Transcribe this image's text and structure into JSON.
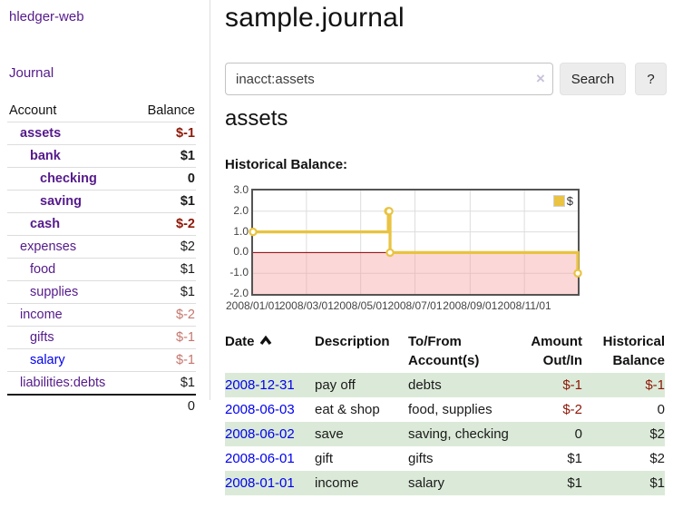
{
  "app": {
    "title": "hledger-web"
  },
  "sidebar": {
    "journal_label": "Journal",
    "table": {
      "account_header": "Account",
      "balance_header": "Balance",
      "rows": [
        {
          "name": "assets",
          "balance": "$-1",
          "depth": 1,
          "bold": true,
          "neg": "strong"
        },
        {
          "name": "bank",
          "balance": "$1",
          "depth": 2,
          "bold": true,
          "neg": "none"
        },
        {
          "name": "checking",
          "balance": "0",
          "depth": 3,
          "bold": true,
          "neg": "none"
        },
        {
          "name": "saving",
          "balance": "$1",
          "depth": 3,
          "bold": true,
          "neg": "none"
        },
        {
          "name": "cash",
          "balance": "$-2",
          "depth": 2,
          "bold": true,
          "neg": "strong"
        },
        {
          "name": "expenses",
          "balance": "$2",
          "depth": 1,
          "bold": false,
          "neg": "none"
        },
        {
          "name": "food",
          "balance": "$1",
          "depth": 2,
          "bold": false,
          "neg": "none"
        },
        {
          "name": "supplies",
          "balance": "$1",
          "depth": 2,
          "bold": false,
          "neg": "none"
        },
        {
          "name": "income",
          "balance": "$-2",
          "depth": 1,
          "bold": false,
          "neg": "faded"
        },
        {
          "name": "gifts",
          "balance": "$-1",
          "depth": 2,
          "bold": false,
          "neg": "faded"
        },
        {
          "name": "salary",
          "balance": "$-1",
          "depth": 2,
          "bold": false,
          "neg": "faded",
          "link_color": "blue"
        },
        {
          "name": "liabilities:debts",
          "balance": "$1",
          "depth": 1,
          "bold": false,
          "neg": "none"
        }
      ],
      "total": "0"
    }
  },
  "main": {
    "title": "sample.journal",
    "search": {
      "value": "inacct:assets",
      "clear_icon": "×",
      "button_label": "Search",
      "help_label": "?"
    },
    "account_heading": "assets",
    "chart_label": "Historical Balance:"
  },
  "chart_data": {
    "type": "line",
    "title": "Historical Balance",
    "step": true,
    "x_start": "2008-01-01",
    "x_end": "2008-12-31",
    "ylim": [
      -2,
      3
    ],
    "y_ticks": [
      "3.0",
      "2.0",
      "1.0",
      "0.0",
      "-1.0",
      "-2.0"
    ],
    "x_ticks": [
      "2008/01/01",
      "2008/03/01",
      "2008/05/01",
      "2008/07/01",
      "2008/09/01",
      "2008/11/01"
    ],
    "series": [
      {
        "name": "$",
        "color": "#e9c341",
        "points": [
          [
            "2008-01-01",
            1
          ],
          [
            "2008-06-01",
            2
          ],
          [
            "2008-06-02",
            2
          ],
          [
            "2008-06-03",
            0
          ],
          [
            "2008-12-31",
            -1
          ]
        ]
      }
    ],
    "legend": {
      "label": "$",
      "position": "top-right"
    },
    "zero_line_color": "#8b0000",
    "negative_region_color": "rgba(245,160,160,0.42)",
    "grid_color": "#dddddd"
  },
  "register_table": {
    "headers": {
      "date": "Date",
      "description": "Description",
      "accounts": "To/From Account(s)",
      "amount": "Amount Out/In",
      "historical": "Historical Balance"
    },
    "rows": [
      {
        "date": "2008-12-31",
        "description": "pay off",
        "accounts": "debts",
        "amount": "$-1",
        "balance": "$-1",
        "amount_neg": true,
        "balance_neg": true
      },
      {
        "date": "2008-06-03",
        "description": "eat & shop",
        "accounts": "food, supplies",
        "amount": "$-2",
        "balance": "0",
        "amount_neg": true,
        "balance_neg": false
      },
      {
        "date": "2008-06-02",
        "description": "save",
        "accounts": "saving, checking",
        "amount": "0",
        "balance": "$2",
        "amount_neg": false,
        "balance_neg": false
      },
      {
        "date": "2008-06-01",
        "description": "gift",
        "accounts": "gifts",
        "amount": "$1",
        "balance": "$2",
        "amount_neg": false,
        "balance_neg": false
      },
      {
        "date": "2008-01-01",
        "description": "income",
        "accounts": "salary",
        "amount": "$1",
        "balance": "$1",
        "amount_neg": false,
        "balance_neg": false
      }
    ]
  }
}
